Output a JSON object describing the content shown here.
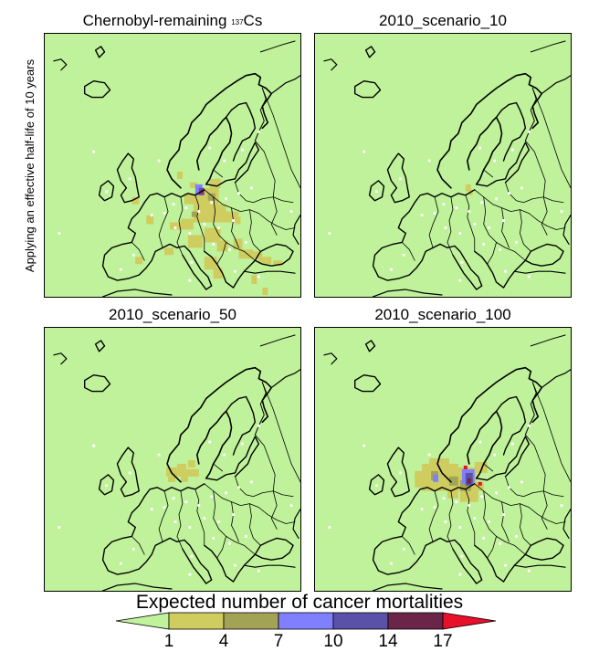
{
  "side_label": "Applying an effective half-life of 10 years",
  "panels": [
    {
      "title_main": "Chernobyl-remaining ",
      "title_sup": "137",
      "title_tail": "Cs"
    },
    {
      "title_main": "2010_scenario_10",
      "title_sup": "",
      "title_tail": ""
    },
    {
      "title_main": "2010_scenario_50",
      "title_sup": "",
      "title_tail": ""
    },
    {
      "title_main": "2010_scenario_100",
      "title_sup": "",
      "title_tail": ""
    }
  ],
  "colorbar": {
    "title": "Expected number of cancer mortalities",
    "ticks": [
      "1",
      "4",
      "7",
      "10",
      "14",
      "17"
    ],
    "colors": {
      "below": "#bff29a",
      "b1": "#cfcc60",
      "b2": "#a3a356",
      "b3": "#8080ff",
      "b4": "#5a52a8",
      "b5": "#6b2548",
      "above": "#e8102a"
    }
  },
  "colors": {
    "land": "#bff29a",
    "coast": "#000000",
    "border": "#000000",
    "dot": "#ffffff"
  }
}
